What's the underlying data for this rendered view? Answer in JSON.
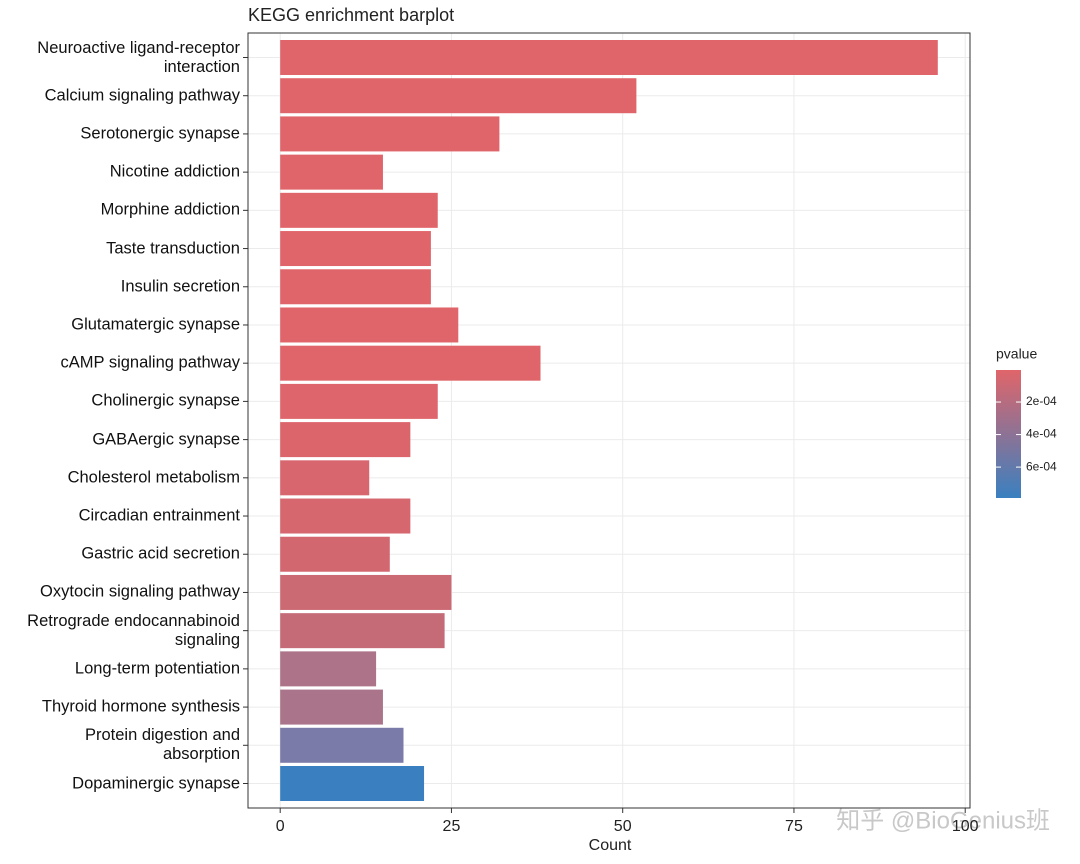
{
  "chart_data": {
    "type": "barh",
    "title": "KEGG enrichment barplot",
    "x_label": "Count",
    "categories": [
      "Neuroactive ligand-receptor\ninteraction",
      "Calcium signaling pathway",
      "Serotonergic synapse",
      "Nicotine addiction",
      "Morphine addiction",
      "Taste transduction",
      "Insulin secretion",
      "Glutamatergic synapse",
      "cAMP signaling pathway",
      "Cholinergic synapse",
      "GABAergic synapse",
      "Cholesterol metabolism",
      "Circadian entrainment",
      "Gastric acid secretion",
      "Oxytocin signaling pathway",
      "Retrograde endocannabinoid\nsignaling",
      "Long-term potentiation",
      "Thyroid hormone synthesis",
      "Protein digestion and\nabsorption",
      "Dopaminergic synapse"
    ],
    "values": [
      96,
      52,
      32,
      15,
      23,
      22,
      22,
      26,
      38,
      23,
      19,
      13,
      19,
      16,
      25,
      24,
      14,
      15,
      18,
      21
    ],
    "colors": [
      "#e0656a",
      "#e0656a",
      "#e0656a",
      "#e0656a",
      "#e0656a",
      "#e0656a",
      "#e0656a",
      "#e0656a",
      "#df656a",
      "#de656b",
      "#dc656c",
      "#d8666e",
      "#d6676f",
      "#d36770",
      "#cc6a74",
      "#c56b78",
      "#ad7389",
      "#aa748a",
      "#7a7ba8",
      "#3a80c0"
    ],
    "xlim": [
      -4.7,
      100.7
    ],
    "xticks": [
      0,
      25,
      50,
      75,
      100
    ],
    "grid": true,
    "legend": {
      "title": "pvalue",
      "colors": [
        "#e0656a",
        "#3a80c0"
      ],
      "lim": [
        3e-06,
        0.00079
      ],
      "ticks": [
        {
          "value": 0.0002,
          "label": "2e-04"
        },
        {
          "value": 0.0004,
          "label": "4e-04"
        },
        {
          "value": 0.0006,
          "label": "6e-04"
        }
      ]
    },
    "watermark": "知乎 @BioGenius班"
  }
}
